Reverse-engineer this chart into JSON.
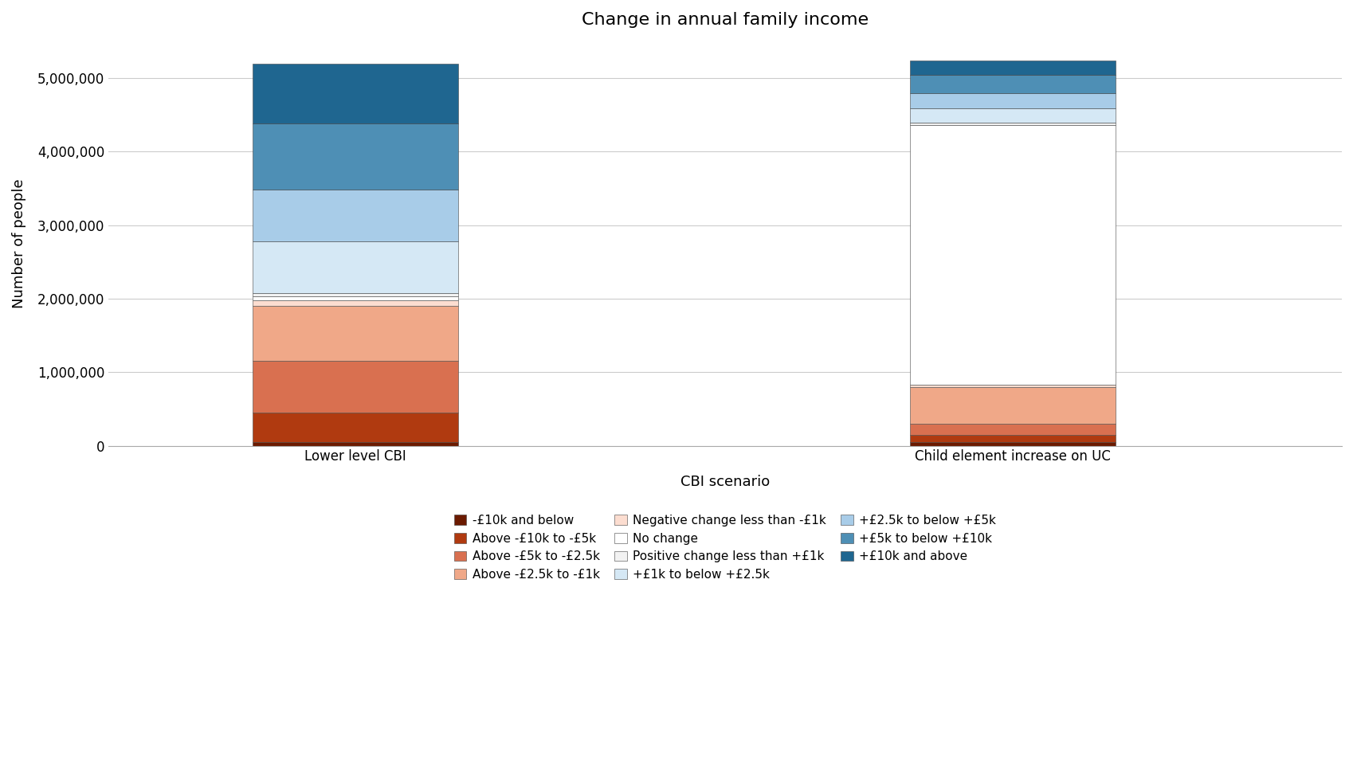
{
  "title": "Change in annual family income",
  "xlabel": "CBI scenario",
  "ylabel": "Number of people",
  "categories": [
    "Lower level CBI",
    "Child element increase on UC"
  ],
  "segments": [
    {
      "label": "-£10k and below",
      "color": "#6B1A00",
      "values": [
        50000,
        50000
      ]
    },
    {
      "label": "Above -£10k to -£5k",
      "color": "#B03A10",
      "values": [
        400000,
        100000
      ]
    },
    {
      "label": "Above -£5k to -£2.5k",
      "color": "#D97050",
      "values": [
        700000,
        150000
      ]
    },
    {
      "label": "Above -£2.5k to -£1k",
      "color": "#F0A888",
      "values": [
        750000,
        500000
      ]
    },
    {
      "label": "Negative change less than -£1k",
      "color": "#FCDDD0",
      "values": [
        80000,
        30000
      ]
    },
    {
      "label": "No change",
      "color": "#FFFFFF",
      "values": [
        50000,
        3530000
      ]
    },
    {
      "label": "Positive change less than +£1k",
      "color": "#F2F2F2",
      "values": [
        50000,
        30000
      ]
    },
    {
      "label": "+£1k to below +£2.5k",
      "color": "#D5E8F5",
      "values": [
        700000,
        200000
      ]
    },
    {
      "label": "+£2.5k to below +£5k",
      "color": "#A8CCE8",
      "values": [
        700000,
        200000
      ]
    },
    {
      "label": "+£5k to below +£10k",
      "color": "#4E8FB5",
      "values": [
        900000,
        250000
      ]
    },
    {
      "label": "+£10k and above",
      "color": "#1F6690",
      "values": [
        820000,
        200000
      ]
    }
  ],
  "ylim": [
    0,
    5500000
  ],
  "yticks": [
    0,
    1000000,
    2000000,
    3000000,
    4000000,
    5000000
  ],
  "ytick_labels": [
    "0",
    "1,000,000",
    "2,000,000",
    "3,000,000",
    "4,000,000",
    "5,000,000"
  ],
  "background_color": "#FFFFFF",
  "grid_color": "#CCCCCC",
  "bar_width": 0.25,
  "x_positions": [
    0.3,
    1.1
  ],
  "title_fontsize": 16,
  "axis_label_fontsize": 13,
  "tick_fontsize": 12,
  "legend_fontsize": 11
}
